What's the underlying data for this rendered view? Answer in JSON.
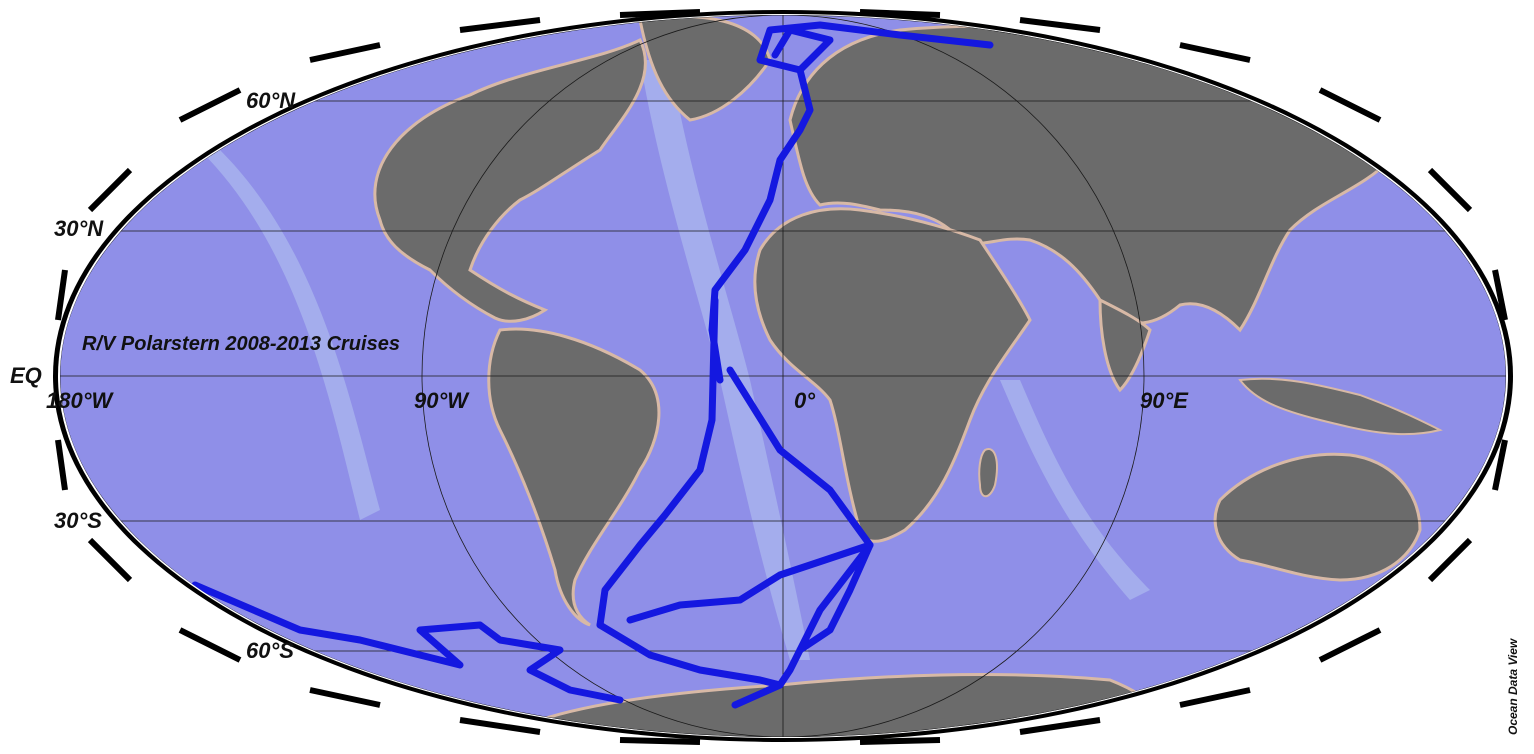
{
  "map": {
    "title": "R/V Polarstern 2008-2013 Cruises",
    "credit": "Ocean Data View",
    "projection": "Mollweide",
    "latitude_labels": {
      "n60": "60°N",
      "n30": "30°N",
      "eq": "EQ",
      "s30": "30°S",
      "s60": "60°S"
    },
    "longitude_labels": {
      "w180": "180°W",
      "w90": "90°W",
      "zero": "0°",
      "e90": "90°E"
    },
    "colors": {
      "ocean": "#8f8fe8",
      "land": "#6b6b6b",
      "shelf": "#9fd6e6",
      "coast": "#d8b9a6",
      "track": "#1418e0",
      "grid": "#1a1a1a"
    }
  }
}
